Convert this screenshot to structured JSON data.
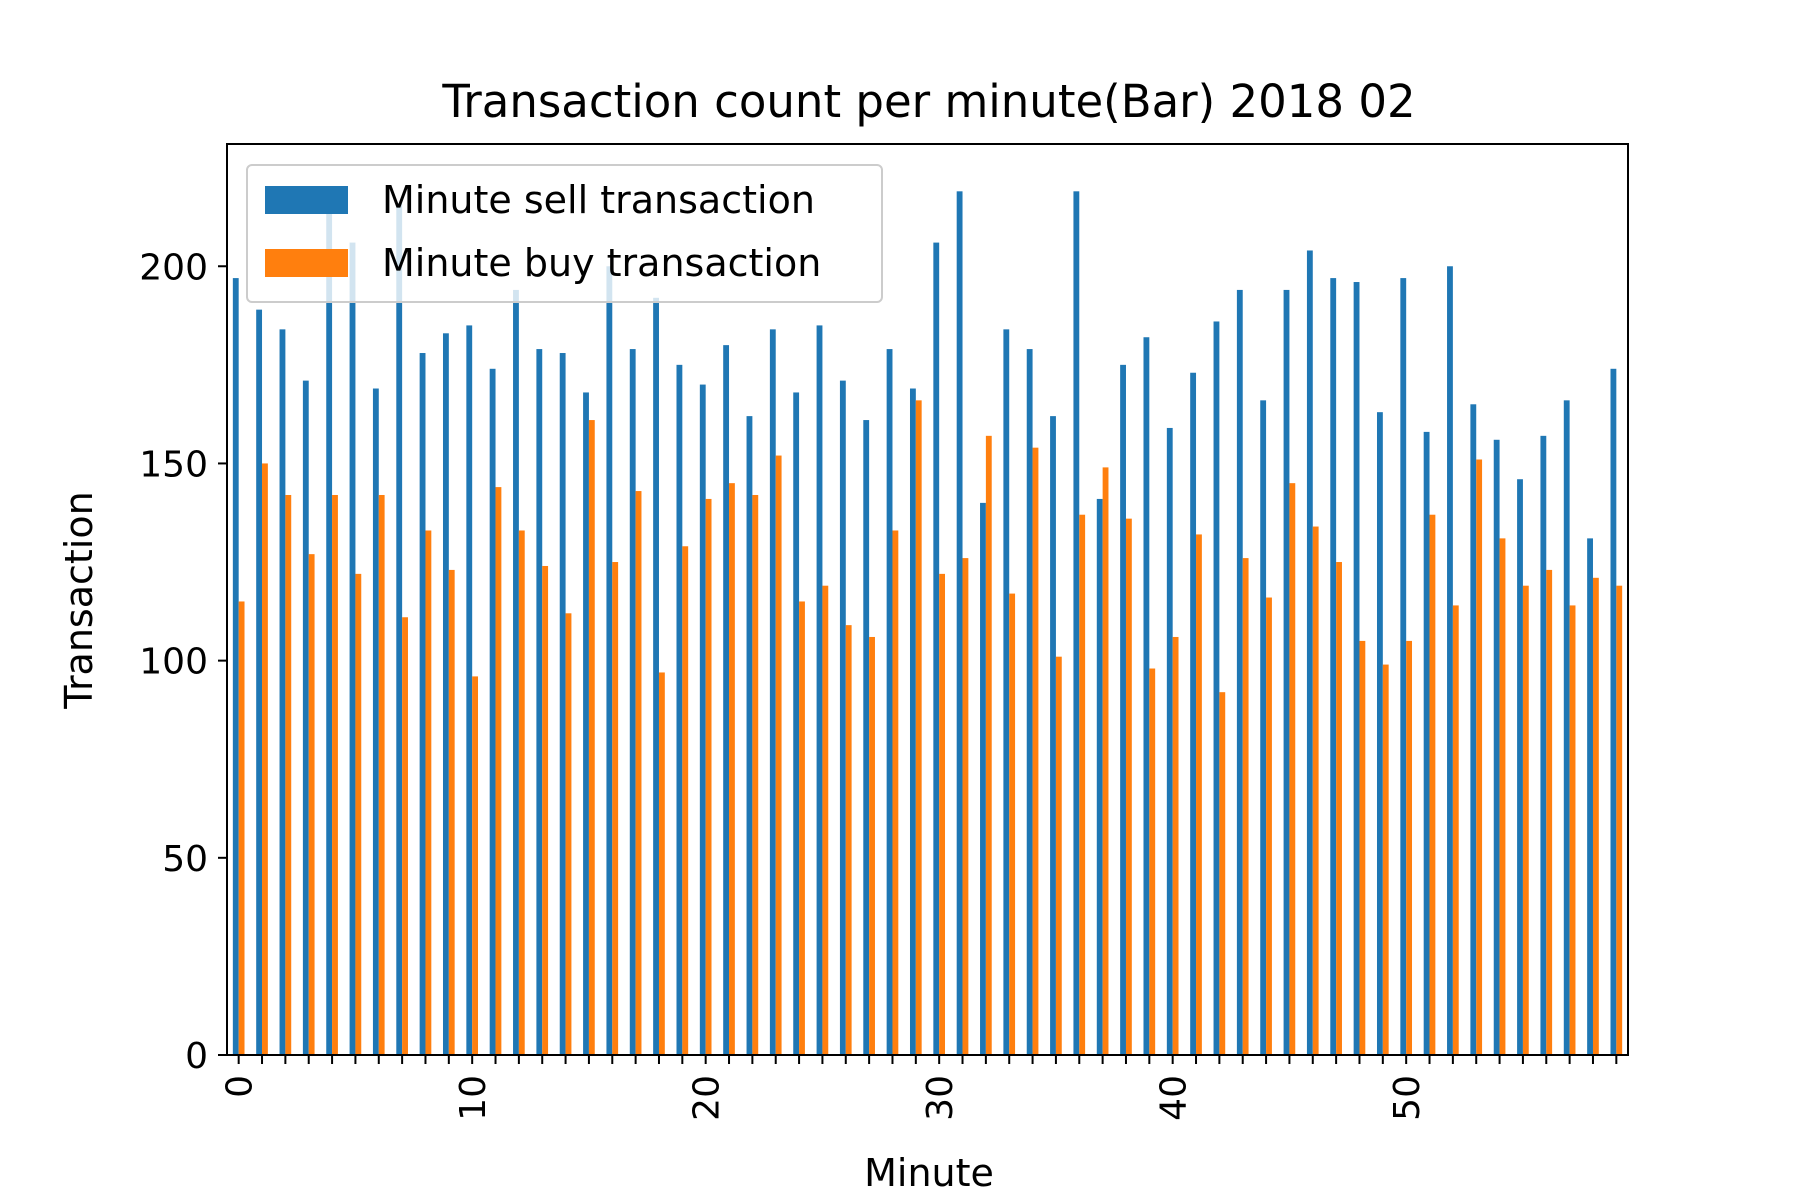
{
  "chart_data": {
    "type": "bar",
    "title": "Transaction count per minute(Bar) 2018 02",
    "xlabel": "Minute",
    "ylabel": "Transaction",
    "ylim": [
      0,
      231
    ],
    "yticks": [
      0,
      50,
      100,
      150,
      200
    ],
    "xticks": [
      0,
      10,
      20,
      30,
      40,
      50
    ],
    "grid": false,
    "legend_position": "top-left",
    "categories": [
      0,
      1,
      2,
      3,
      4,
      5,
      6,
      7,
      8,
      9,
      10,
      11,
      12,
      13,
      14,
      15,
      16,
      17,
      18,
      19,
      20,
      21,
      22,
      23,
      24,
      25,
      26,
      27,
      28,
      29,
      30,
      31,
      32,
      33,
      34,
      35,
      36,
      37,
      38,
      39,
      40,
      41,
      42,
      43,
      44,
      45,
      46,
      47,
      48,
      49,
      50,
      51,
      52,
      53,
      54,
      55,
      56,
      57,
      58,
      59
    ],
    "series": [
      {
        "name": "Minute sell transaction",
        "color": "#1f77b4",
        "values": [
          197,
          189,
          184,
          171,
          216,
          206,
          169,
          216,
          178,
          183,
          185,
          174,
          194,
          179,
          178,
          168,
          200,
          179,
          192,
          175,
          170,
          180,
          162,
          184,
          168,
          185,
          171,
          161,
          179,
          169,
          206,
          219,
          140,
          184,
          179,
          162,
          219,
          141,
          175,
          182,
          159,
          173,
          186,
          194,
          166,
          194,
          204,
          197,
          196,
          163,
          197,
          158,
          200,
          165,
          156,
          146,
          157,
          166,
          131,
          174
        ]
      },
      {
        "name": "Minute buy transaction",
        "color": "#ff7f0e",
        "values": [
          115,
          150,
          142,
          127,
          142,
          122,
          142,
          111,
          133,
          123,
          96,
          144,
          133,
          124,
          112,
          161,
          125,
          143,
          97,
          129,
          141,
          145,
          142,
          152,
          115,
          119,
          109,
          106,
          133,
          166,
          122,
          126,
          157,
          117,
          154,
          101,
          137,
          149,
          136,
          98,
          106,
          132,
          92,
          126,
          116,
          145,
          134,
          125,
          105,
          99,
          105,
          137,
          114,
          151,
          131,
          119,
          123,
          114,
          121,
          119
        ]
      }
    ]
  }
}
